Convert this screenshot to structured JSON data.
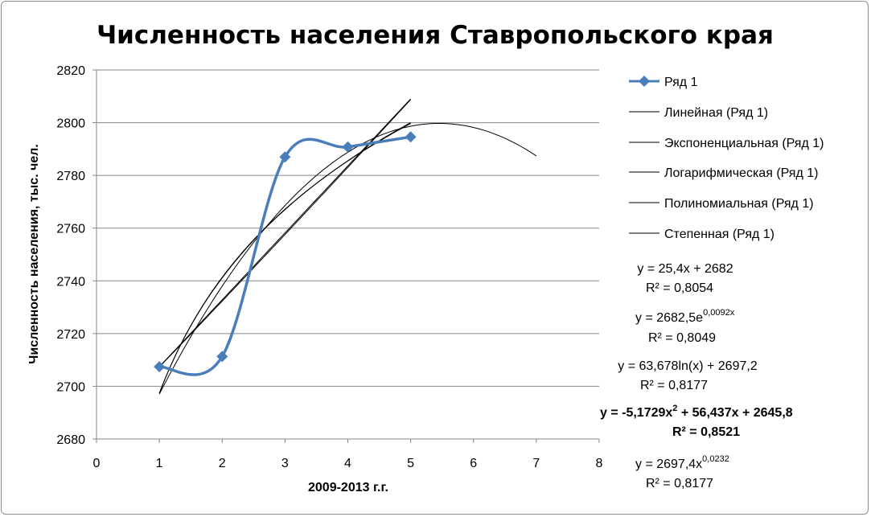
{
  "chart_data": {
    "type": "line",
    "title": "Численность населения Ставропольского края",
    "xlabel": "2009-2013 г.г.",
    "ylabel": "Численность населения, тыс. чел.",
    "xlim": [
      0,
      8
    ],
    "ylim": [
      2680,
      2820
    ],
    "x_ticks": [
      "0",
      "1",
      "2",
      "3",
      "4",
      "5",
      "6",
      "7",
      "8"
    ],
    "y_ticks": [
      "2680",
      "2700",
      "2720",
      "2740",
      "2760",
      "2780",
      "2800",
      "2820"
    ],
    "grid": "horizontal",
    "legend_position": "right",
    "series": [
      {
        "name": "Ряд 1",
        "color": "#4a7ebb",
        "x": [
          1,
          2,
          3,
          4,
          5
        ],
        "values": [
          2707.4,
          2711.3,
          2787.0,
          2790.8,
          2794.6
        ]
      }
    ],
    "trendlines": [
      {
        "name": "Линейная (Ряд 1)",
        "kind": "linear",
        "equation": "y = 25,4x + 2682",
        "r2": "R² = 0,8054",
        "a": 25.4,
        "b": 2682,
        "xrange": [
          1,
          5
        ]
      },
      {
        "name": "Экспоненциальная (Ряд 1)",
        "kind": "exponential",
        "equation": "y = 2682,5e",
        "equation_sup": "0,0092x",
        "r2": "R² = 0,8049",
        "a": 2682.5,
        "b": 0.0092,
        "xrange": [
          1,
          5
        ]
      },
      {
        "name": "Логарифмическая (Ряд 1)",
        "kind": "logarithmic",
        "equation": "y = 63,678ln(x) + 2697,2",
        "r2": "R² = 0,8177",
        "a": 63.678,
        "b": 2697.2,
        "xrange": [
          1,
          5
        ]
      },
      {
        "name": "Полиномиальная (Ряд 1)",
        "kind": "polynomial",
        "equation": "y = -5,1729x",
        "equation_sup": "2",
        "equation_rest": " + 56,437x + 2645,8",
        "r2": "R² = 0,8521",
        "a": -5.1729,
        "b": 56.437,
        "c": 2645.8,
        "xrange": [
          1,
          7
        ]
      },
      {
        "name": "Степенная (Ряд 1)",
        "kind": "power",
        "equation": "y = 2697,4x",
        "equation_sup": "0,0232",
        "r2": "R² = 0,8177",
        "a": 2697.4,
        "b": 0.0232,
        "xrange": [
          1,
          5
        ]
      }
    ]
  }
}
